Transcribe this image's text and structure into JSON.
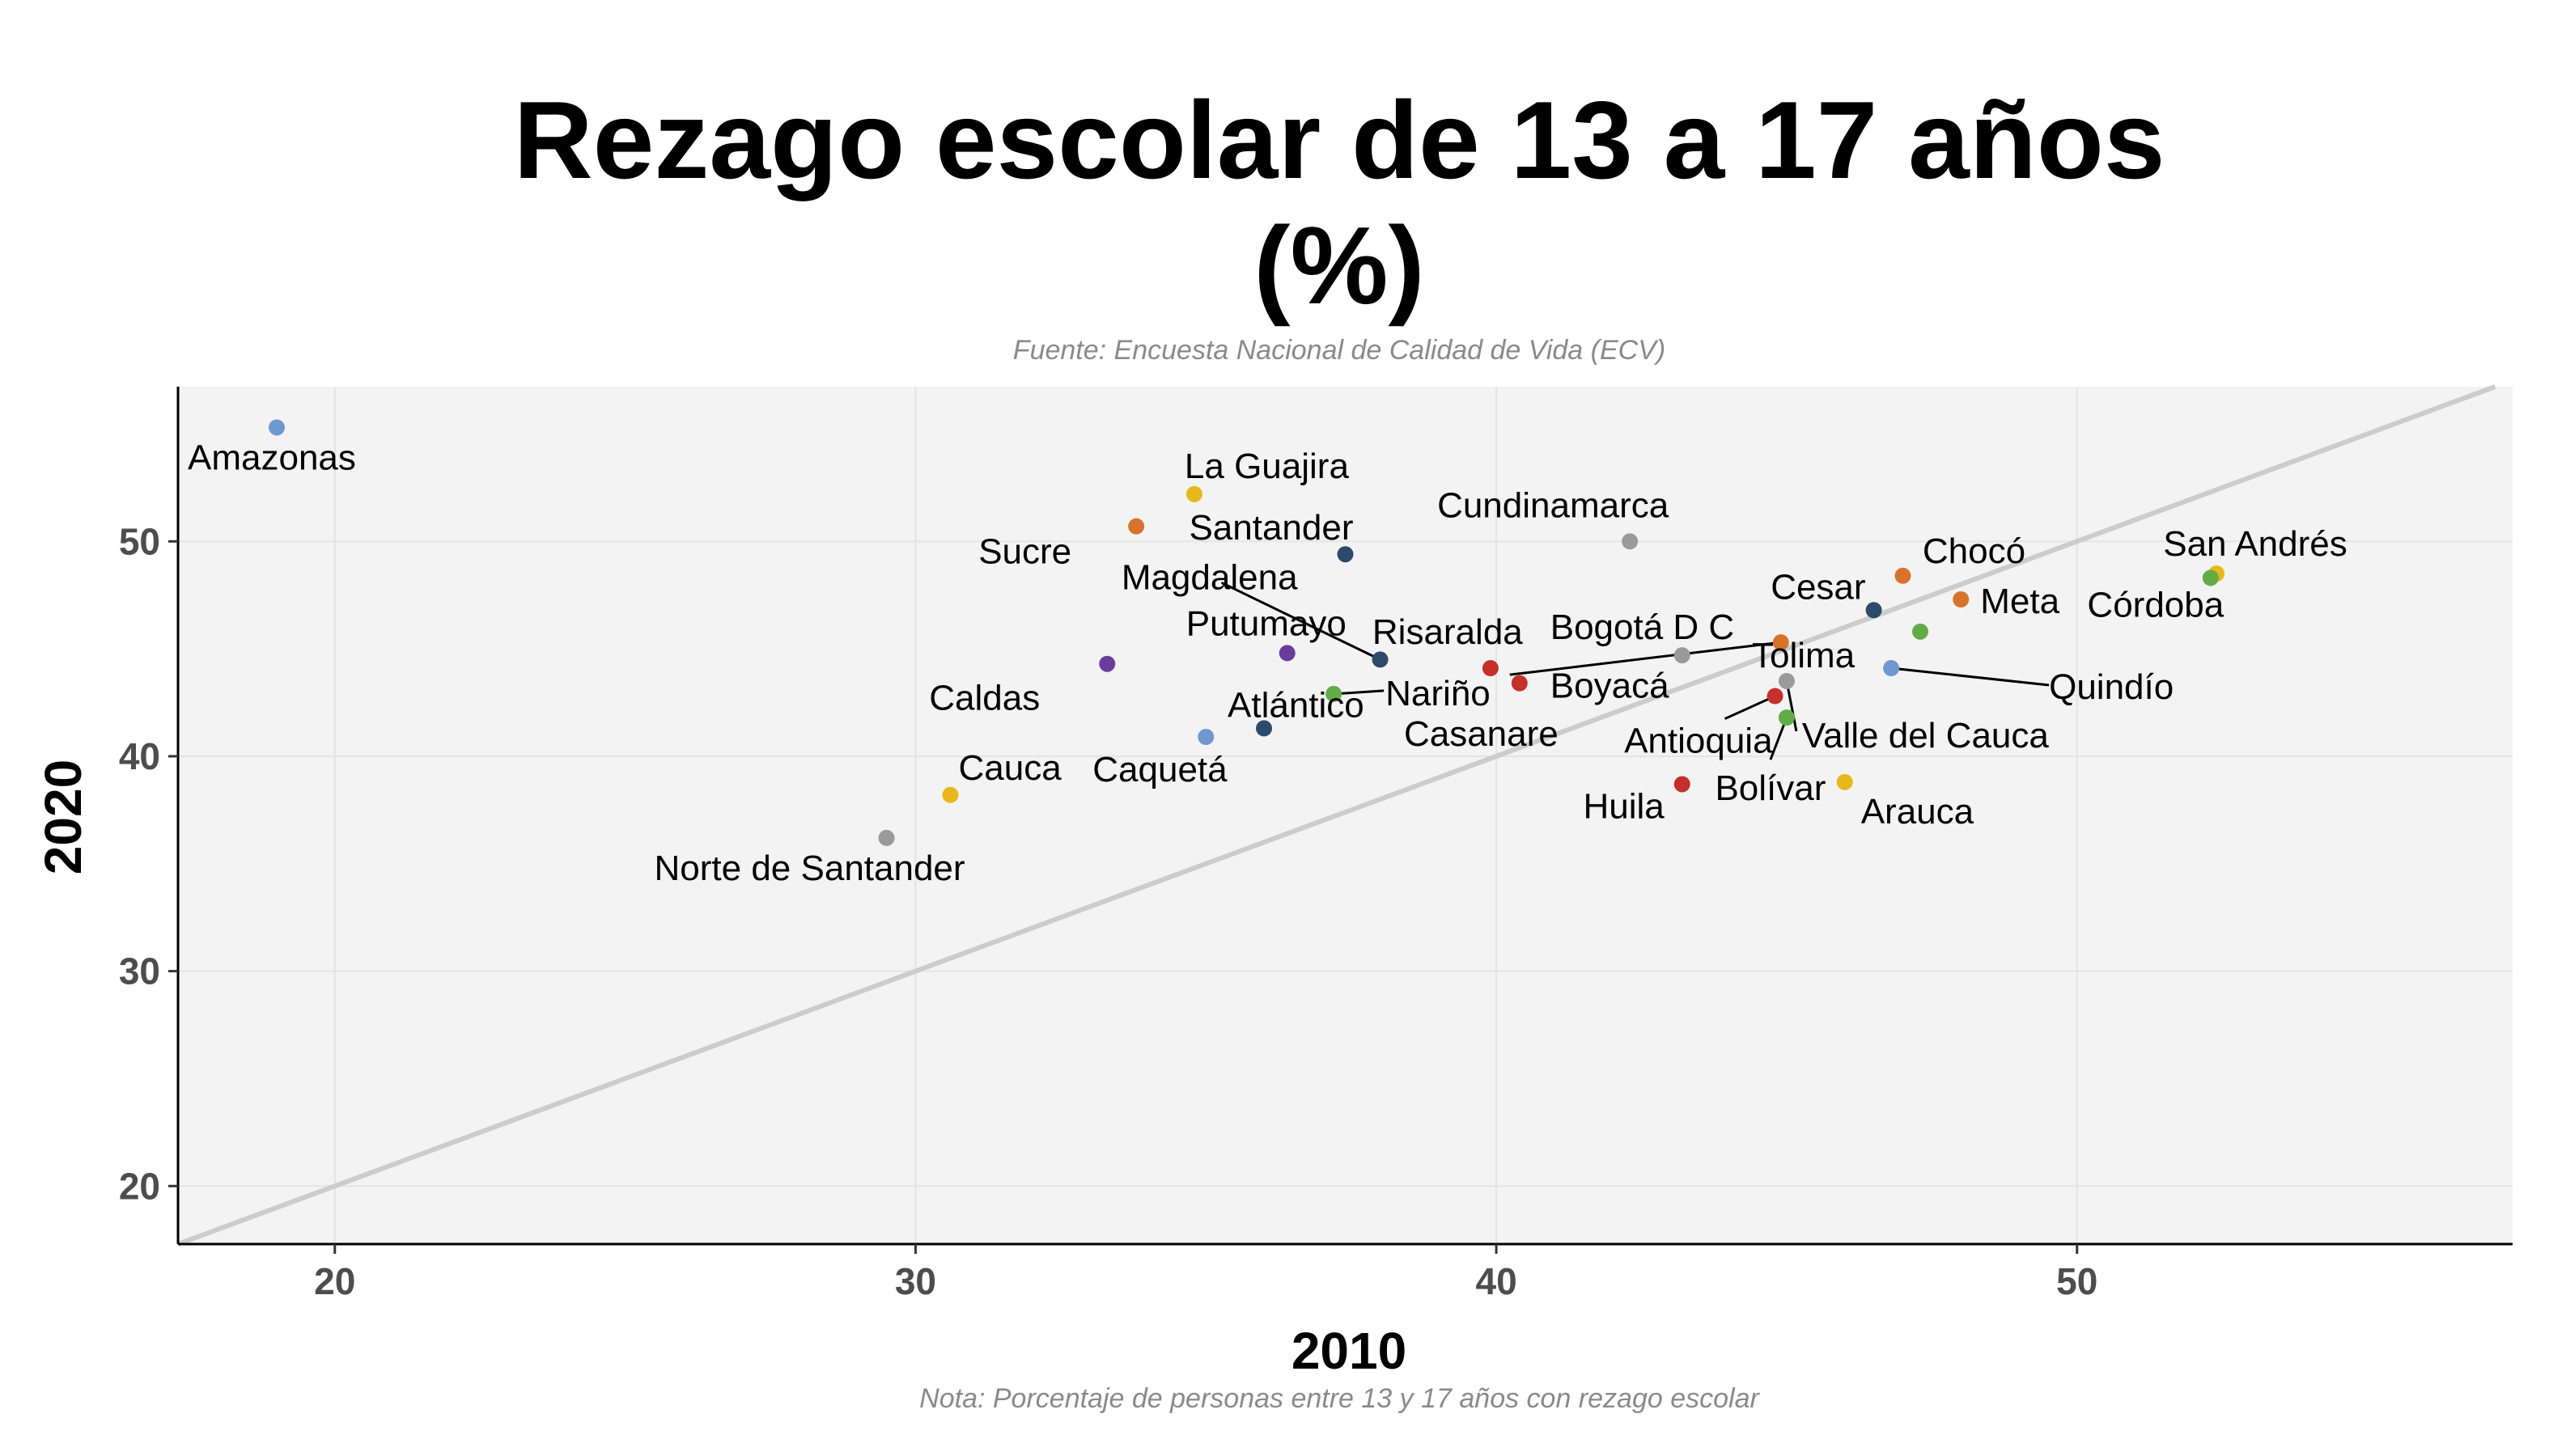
{
  "chart_data": {
    "type": "scatter",
    "title": [
      "Rezago escolar de 13 a 17 años",
      "(%)"
    ],
    "subtitle": "Fuente: Encuesta Nacional de Calidad de Vida (ECV)",
    "caption": "Nota: Porcentaje de personas entre 13 y 17 años con rezago escolar",
    "xlabel": "2010",
    "ylabel": "2020",
    "xlim": [
      17.3,
      57.5
    ],
    "ylim": [
      17.3,
      57.2
    ],
    "xticks": [
      20,
      30,
      40,
      50
    ],
    "yticks": [
      20,
      30,
      40,
      50
    ],
    "grid": true,
    "reference_line": "y = x",
    "colors": {
      "blue": "#6f97d2",
      "orange": "#d9722a",
      "yellow": "#e8b71c",
      "navy": "#2e4a6b",
      "purple": "#6a3d9a",
      "gray": "#9a9a9a",
      "green": "#62ac47",
      "red": "#c5302a",
      "reference": "#cccccc",
      "panel": "#f3f3f3"
    },
    "points": [
      {
        "label": "Amazonas",
        "x": 19.0,
        "y": 55.3,
        "color": "blue"
      },
      {
        "label": "La Guajira",
        "x": 34.8,
        "y": 52.2,
        "color": "yellow"
      },
      {
        "label": "Sucre",
        "x": 33.8,
        "y": 50.7,
        "color": "orange"
      },
      {
        "label": "Santander",
        "x": 37.4,
        "y": 49.4,
        "color": "navy"
      },
      {
        "label": "Cundinamarca",
        "x": 42.3,
        "y": 50.0,
        "color": "gray"
      },
      {
        "label": "San Andrés",
        "x": 52.4,
        "y": 48.5,
        "color": "yellow"
      },
      {
        "label": "Córdoba",
        "x": 52.3,
        "y": 48.3,
        "color": "green"
      },
      {
        "label": "Chocó",
        "x": 47.0,
        "y": 48.4,
        "color": "orange"
      },
      {
        "label": "Cesar",
        "x": 46.5,
        "y": 46.8,
        "color": "navy"
      },
      {
        "label": "Meta",
        "x": 48.0,
        "y": 47.3,
        "color": "orange"
      },
      {
        "label": "Magdalena",
        "x": 38.0,
        "y": 44.5,
        "color": "navy"
      },
      {
        "label": "Risaralda",
        "x": 39.9,
        "y": 44.1,
        "color": "red"
      },
      {
        "label": "Bogotá D C",
        "x": 43.2,
        "y": 44.7,
        "color": "gray"
      },
      {
        "label": "Putumayo",
        "x": 36.4,
        "y": 44.8,
        "color": "purple"
      },
      {
        "label": "Caldas",
        "x": 33.3,
        "y": 44.3,
        "color": "purple"
      },
      {
        "label": "Nariño",
        "x": 37.2,
        "y": 42.9,
        "color": "green"
      },
      {
        "label": "Boyacá",
        "x": 40.4,
        "y": 43.4,
        "color": "red"
      },
      {
        "label": "Casanare",
        "x": 44.9,
        "y": 45.3,
        "color": "orange"
      },
      {
        "label": "Tolima",
        "x": 47.3,
        "y": 45.8,
        "color": "green"
      },
      {
        "label": "Quindío",
        "x": 46.8,
        "y": 44.1,
        "color": "blue"
      },
      {
        "label": "Atlántico",
        "x": 36.0,
        "y": 41.3,
        "color": "navy"
      },
      {
        "label": "Caquetá",
        "x": 35.0,
        "y": 40.9,
        "color": "blue"
      },
      {
        "label": "Antioquia",
        "x": 44.8,
        "y": 42.8,
        "color": "red"
      },
      {
        "label": "Valle del Cauca",
        "x": 45.0,
        "y": 43.5,
        "color": "gray"
      },
      {
        "label": "Bolívar",
        "x": 45.0,
        "y": 41.8,
        "color": "green"
      },
      {
        "label": "Cauca",
        "x": 30.6,
        "y": 38.2,
        "color": "yellow"
      },
      {
        "label": "Huila",
        "x": 43.2,
        "y": 38.7,
        "color": "red"
      },
      {
        "label": "Arauca",
        "x": 46.0,
        "y": 38.8,
        "color": "yellow"
      },
      {
        "label": "Norte de Santander",
        "x": 29.5,
        "y": 36.2,
        "color": "gray"
      }
    ]
  }
}
